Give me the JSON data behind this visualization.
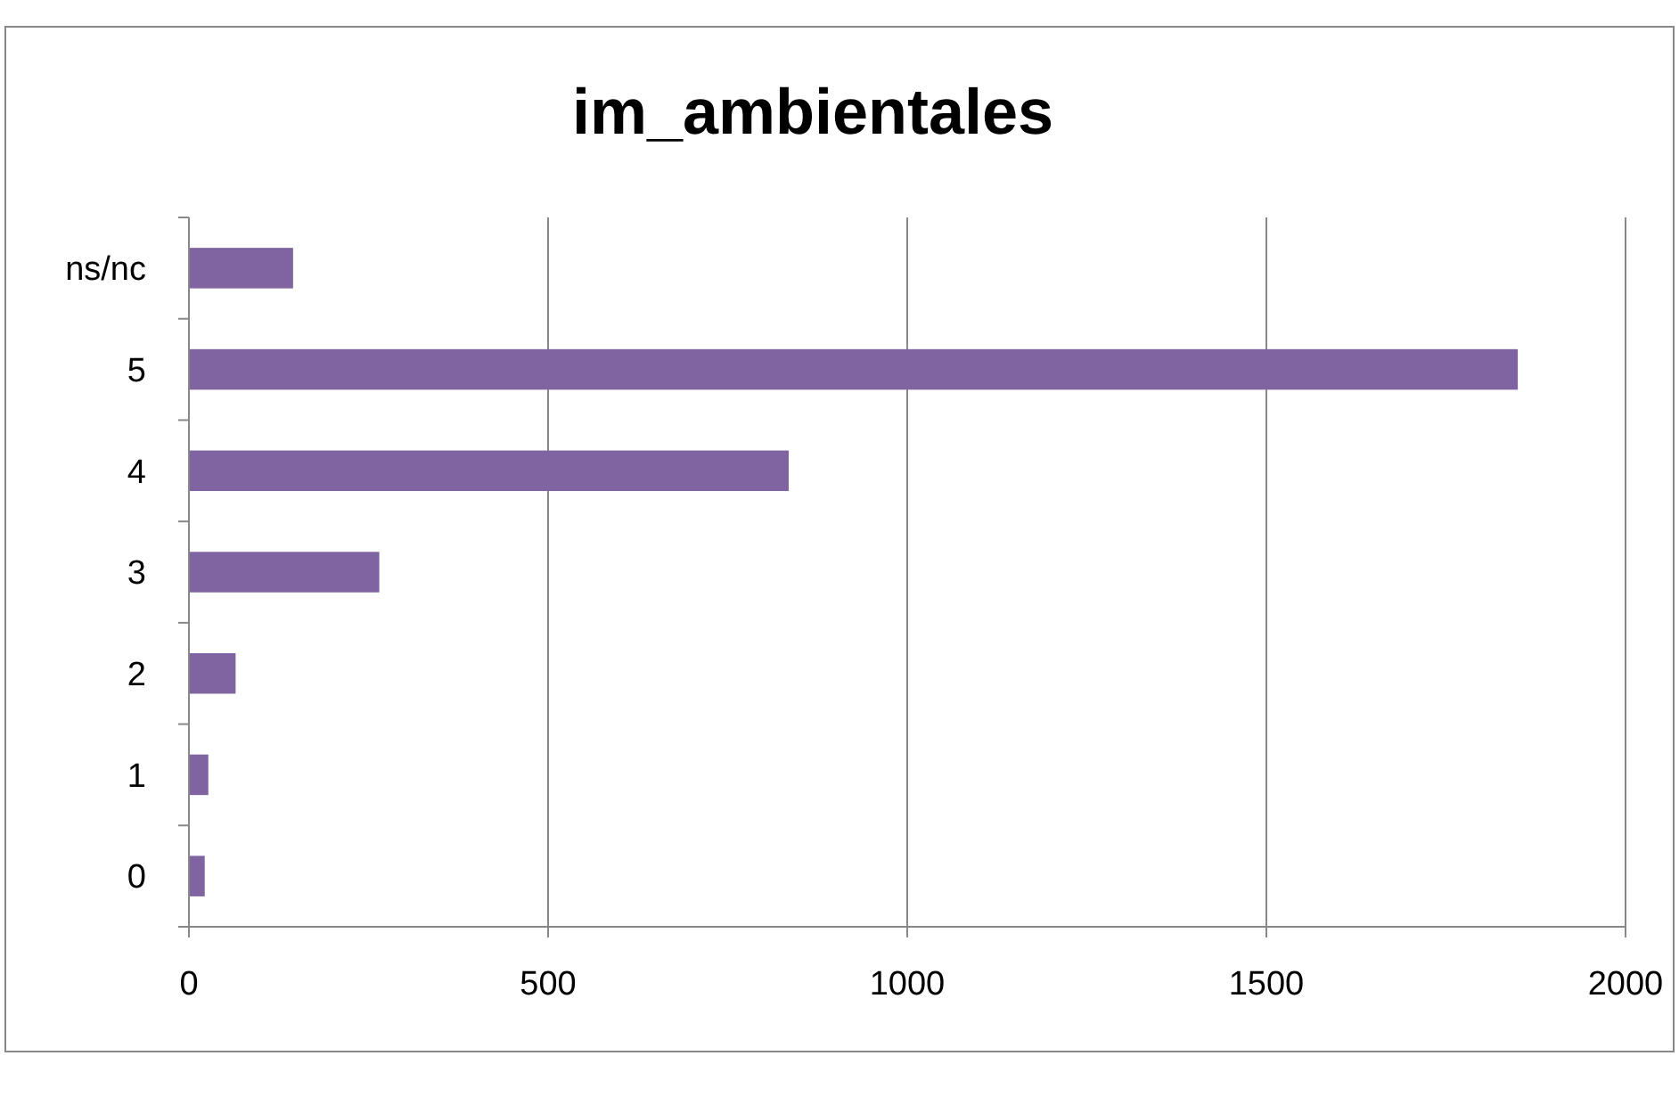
{
  "chart_data": {
    "type": "bar",
    "orientation": "horizontal",
    "title": "im_ambientales",
    "categories": [
      "ns/nc",
      "5",
      "4",
      "3",
      "2",
      "1",
      "0"
    ],
    "values": [
      145,
      1850,
      835,
      265,
      65,
      27,
      22
    ],
    "color": "#8064a2",
    "xlim": [
      0,
      2000
    ],
    "xticks": [
      0,
      500,
      1000,
      1500,
      2000
    ],
    "grid": "x"
  }
}
